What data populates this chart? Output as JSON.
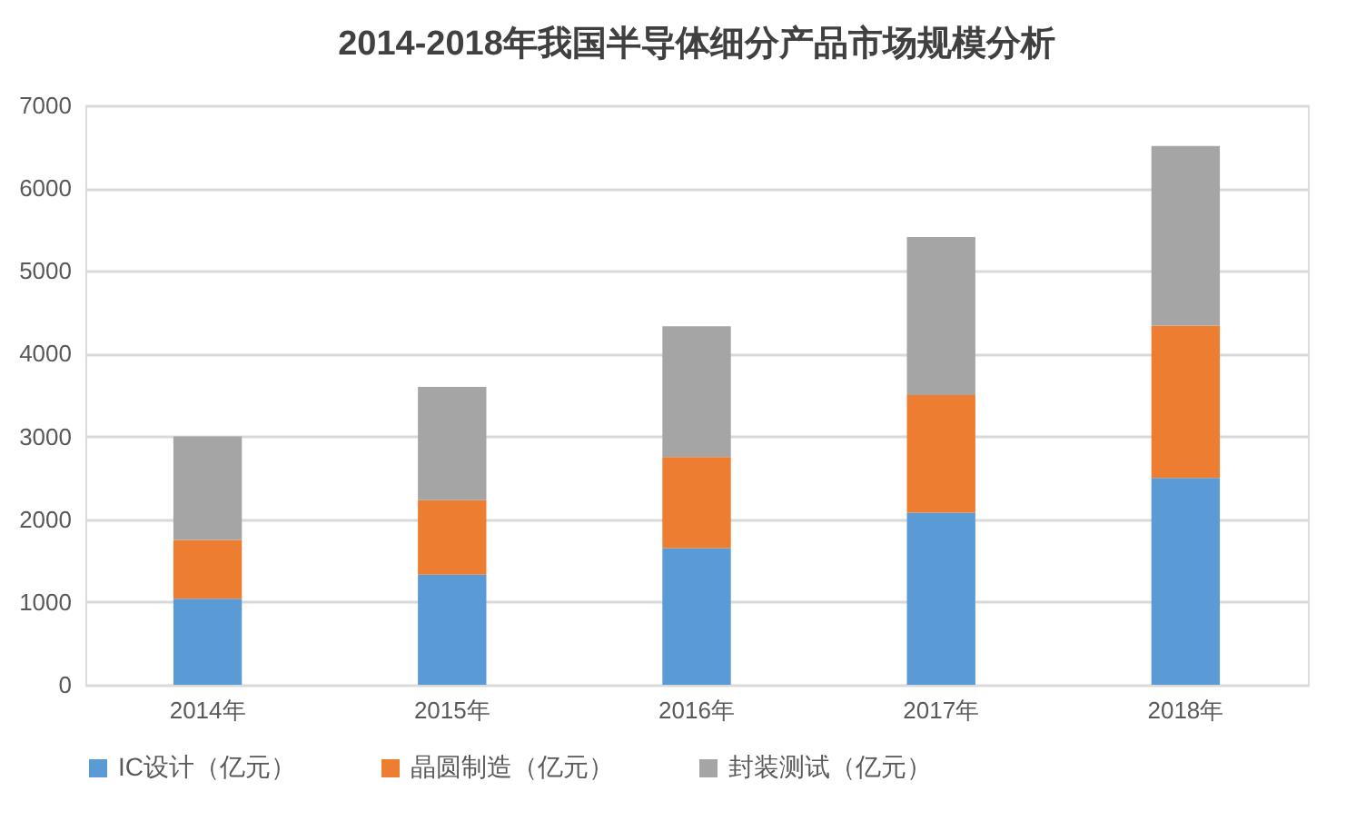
{
  "chart_data": {
    "type": "bar",
    "title": "2014-2018年我国半导体细分产品市场规模分析",
    "stacked": true,
    "categories": [
      "2014年",
      "2015年",
      "2016年",
      "2017年",
      "2018年"
    ],
    "series": [
      {
        "name": "IC设计（亿元）",
        "color": "#5b9bd5",
        "values": [
          1040,
          1330,
          1650,
          2080,
          2500
        ]
      },
      {
        "name": "晶圆制造（亿元）",
        "color": "#ed7d31",
        "values": [
          710,
          900,
          1100,
          1420,
          1840
        ]
      },
      {
        "name": "封装测试（亿元）",
        "color": "#a5a5a5",
        "values": [
          1250,
          1370,
          1580,
          1910,
          2170
        ]
      }
    ],
    "ylim": [
      0,
      7000
    ],
    "yticks": [
      0,
      1000,
      2000,
      3000,
      4000,
      5000,
      6000,
      7000
    ],
    "grid": "y",
    "legend": "bottom"
  }
}
